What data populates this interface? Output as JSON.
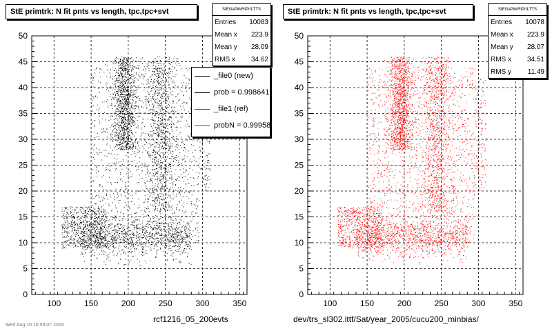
{
  "bottom_left_text": "rcf1216_05_200evts",
  "bottom_right_text": "dev/trs_sl302.ittf/Sat/year_2005/cucu200_minbias/",
  "bottom_left_faint": "Wed Aug 10 16:59:07 2005",
  "legend": {
    "entries": [
      {
        "label": "_file0 (new)",
        "color": "#000000"
      },
      {
        "label": "prob = 0.998641",
        "color": "#000000"
      },
      {
        "label": "_file1 (ref)",
        "color": "#ff0000"
      },
      {
        "label": "probN = 0.99958",
        "color": "#ff0000"
      }
    ]
  },
  "chart_data": [
    {
      "type": "scatter",
      "title": "StE primtrk: N fit pnts vs length, tpc,tpc+svt",
      "xlim": [
        70,
        360
      ],
      "ylim": [
        0,
        50
      ],
      "xticks": [
        100,
        150,
        200,
        250,
        300,
        350
      ],
      "yticks": [
        0,
        5,
        10,
        15,
        20,
        25,
        30,
        35,
        40,
        45,
        50
      ],
      "grid": true,
      "point_color": "#000000",
      "stats": {
        "name": "StEGaPirkRtPrtLTTS",
        "rows": [
          {
            "label": "Entries",
            "value": "10083"
          },
          {
            "label": "Mean x",
            "value": "223.9"
          },
          {
            "label": "Mean y",
            "value": "28.09"
          },
          {
            "label": "RMS x",
            "value": "34.62"
          }
        ]
      }
    },
    {
      "type": "scatter",
      "title": "StE primtrk: N fit pnts vs length, tpc,tpc+svt",
      "xlim": [
        70,
        360
      ],
      "ylim": [
        0,
        50
      ],
      "xticks": [
        100,
        150,
        200,
        250,
        300,
        350
      ],
      "yticks": [
        0,
        5,
        10,
        15,
        20,
        25,
        30,
        35,
        40,
        45,
        50
      ],
      "grid": true,
      "point_color": "#ff0000",
      "stats": {
        "name": "StEGaPirkRtPrtLTTS",
        "rows": [
          {
            "label": "Entries",
            "value": "10078"
          },
          {
            "label": "Mean x",
            "value": "223.9"
          },
          {
            "label": "Mean y",
            "value": "28.07"
          },
          {
            "label": "RMS x",
            "value": "34.51"
          },
          {
            "label": "RMS y",
            "value": "11.49"
          }
        ]
      }
    }
  ]
}
